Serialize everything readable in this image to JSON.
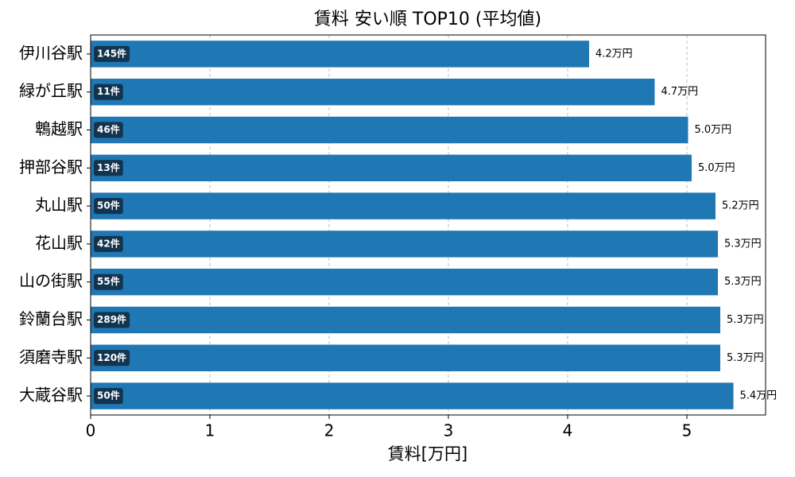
{
  "chart_data": {
    "type": "barh",
    "title": "賃料 安い順 TOP10 (平均値)",
    "x_label": "賃料[万円]",
    "categories": [
      "伊川谷駅",
      "緑が丘駅",
      "鵯越駅",
      "押部谷駅",
      "丸山駅",
      "花山駅",
      "山の街駅",
      "鈴蘭台駅",
      "須磨寺駅",
      "大蔵谷駅"
    ],
    "values": [
      4.18,
      4.73,
      5.01,
      5.04,
      5.24,
      5.26,
      5.26,
      5.28,
      5.28,
      5.39
    ],
    "value_labels": [
      "4.2万円",
      "4.7万円",
      "5.0万円",
      "5.0万円",
      "5.2万円",
      "5.3万円",
      "5.3万円",
      "5.3万円",
      "5.3万円",
      "5.4万円"
    ],
    "counts": [
      145,
      11,
      46,
      13,
      50,
      42,
      55,
      289,
      120,
      50
    ],
    "count_labels": [
      "145件",
      "11件",
      "46件",
      "13件",
      "50件",
      "42件",
      "55件",
      "289件",
      "120件",
      "50件"
    ],
    "color": "#1f77b4",
    "badge_color": "#12344f",
    "xlim": [
      0,
      5.66
    ],
    "xticks": [
      0,
      1,
      2,
      3,
      4,
      5
    ],
    "grid": true
  }
}
